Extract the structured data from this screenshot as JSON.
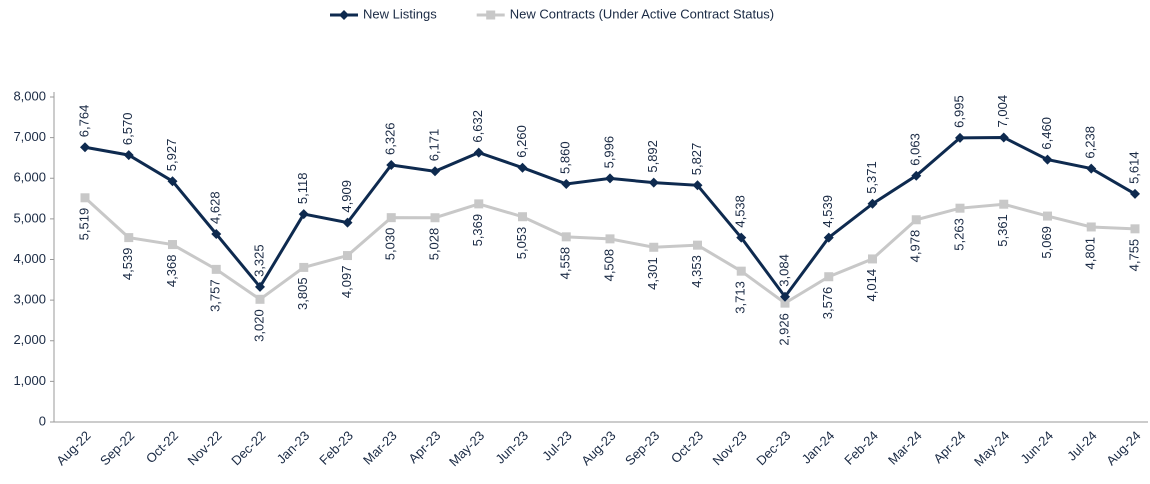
{
  "chart_data": {
    "type": "line",
    "categories": [
      "Aug-22",
      "Sep-22",
      "Oct-22",
      "Nov-22",
      "Dec-22",
      "Jan-23",
      "Feb-23",
      "Mar-23",
      "Apr-23",
      "May-23",
      "Jun-23",
      "Jul-23",
      "Aug-23",
      "Sep-23",
      "Oct-23",
      "Nov-23",
      "Dec-23",
      "Jan-24",
      "Feb-24",
      "Mar-24",
      "Apr-24",
      "May-24",
      "Jun-24",
      "Jul-24",
      "Aug-24"
    ],
    "series": [
      {
        "name": "New Listings",
        "color": "#0e2a4f",
        "marker": "diamond",
        "values": [
          6764,
          6570,
          5927,
          4628,
          3325,
          5118,
          4909,
          6326,
          6171,
          6632,
          6260,
          5860,
          5996,
          5892,
          5827,
          4538,
          3084,
          4539,
          5371,
          6063,
          6995,
          7004,
          6460,
          6238,
          5614
        ],
        "value_labels": [
          "6,764",
          "6,570",
          "5,927",
          "4,628",
          "3,325",
          "5,118",
          "4,909",
          "6,326",
          "6,171",
          "6,632",
          "6,260",
          "5,860",
          "5,996",
          "5,892",
          "5,827",
          "4,538",
          "3,084",
          "4,539",
          "5,371",
          "6,063",
          "6,995",
          "7,004",
          "6,460",
          "6,238",
          "5,614"
        ]
      },
      {
        "name": "New Contracts (Under Active Contract Status)",
        "color": "#c8c8c8",
        "marker": "square",
        "values": [
          5519,
          4539,
          4368,
          3757,
          3020,
          3805,
          4097,
          5030,
          5028,
          5369,
          5053,
          4558,
          4508,
          4301,
          4353,
          3713,
          2926,
          3576,
          4014,
          4978,
          5263,
          5361,
          5069,
          4801,
          4755
        ],
        "value_labels": [
          "5,519",
          "4,539",
          "4,368",
          "3,757",
          "3,020",
          "3,805",
          "4,097",
          "5,030",
          "5,028",
          "5,369",
          "5,053",
          "4,558",
          "4,508",
          "4,301",
          "4,353",
          "3,713",
          "2,926",
          "3,576",
          "4,014",
          "4,978",
          "5,263",
          "5,361",
          "5,069",
          "4,801",
          "4,755"
        ]
      }
    ],
    "ylim": [
      0,
      8000
    ],
    "yticks": [
      0,
      {
        "value": 1000,
        "label": "1,000"
      },
      {
        "value": 2000,
        "label": "2,000"
      },
      {
        "value": 3000,
        "label": "3,000"
      },
      {
        "value": 4000,
        "label": "4,000"
      },
      {
        "value": 5000,
        "label": "5,000"
      },
      {
        "value": 6000,
        "label": "6,000"
      },
      {
        "value": 7000,
        "label": "7,000"
      },
      {
        "value": 8000,
        "label": "8,000"
      }
    ],
    "legend": "top"
  }
}
